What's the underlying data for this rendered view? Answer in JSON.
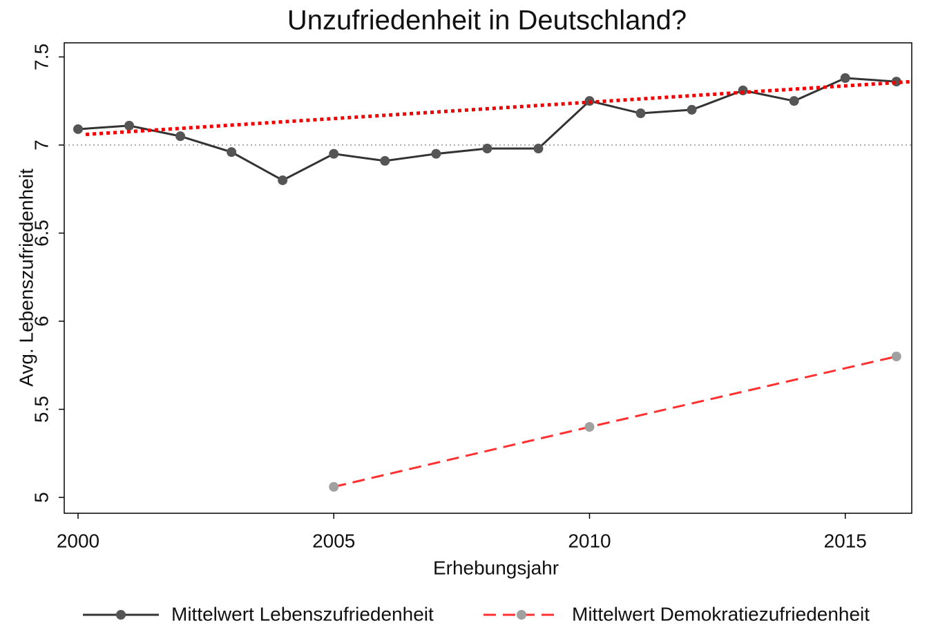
{
  "chart_data": {
    "type": "line",
    "title": "Unzufriedenheit in Deutschland?",
    "x_label": "Erhebungsjahr",
    "y_label": "Avg. Lebenszufriedenheit",
    "xlim": [
      1999.73,
      2016.3
    ],
    "xticks": [
      2000,
      2005,
      2010,
      2015
    ],
    "ylim": [
      4.91,
      7.58
    ],
    "yticks": [
      5,
      5.5,
      6,
      6.5,
      7,
      7.5
    ],
    "reference_line": 7,
    "series": [
      {
        "name": "Mittelwert Lebenszufriedenheit",
        "color": "#333333",
        "marker_color": "#555555",
        "x": [
          2000,
          2001,
          2002,
          2003,
          2004,
          2005,
          2006,
          2007,
          2008,
          2009,
          2010,
          2011,
          2012,
          2013,
          2014,
          2015,
          2016
        ],
        "values": [
          7.09,
          7.11,
          7.05,
          6.96,
          6.8,
          6.95,
          6.91,
          6.95,
          6.98,
          6.98,
          7.25,
          7.18,
          7.2,
          7.31,
          7.25,
          7.38,
          7.36
        ]
      },
      {
        "name": "Mittelwert Demokratiezufriedenheit",
        "color": "#ff3030",
        "marker_color": "#a0a0a0",
        "dashed": true,
        "x": [
          2005,
          2010,
          2016
        ],
        "values": [
          5.06,
          5.4,
          5.8
        ]
      }
    ],
    "trend_line": {
      "color": "#ee0000",
      "x": [
        2000.15,
        2016.3
      ],
      "values": [
        7.06,
        7.36
      ]
    }
  }
}
